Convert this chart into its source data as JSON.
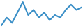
{
  "values": [
    1,
    4,
    2,
    6,
    10,
    5,
    7,
    4,
    6,
    3,
    5,
    4,
    7,
    9,
    7,
    8
  ],
  "line_color": "#3a8fc7",
  "line_width": 1.5,
  "background_color": "#ffffff"
}
